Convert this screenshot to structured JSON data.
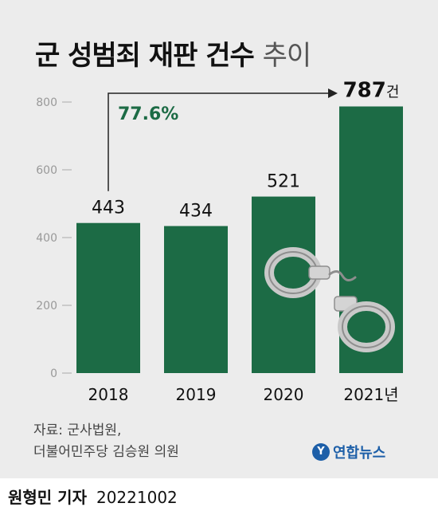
{
  "title": {
    "main": "군 성범죄 재판 건수",
    "suffix": "추이"
  },
  "source": {
    "line1": "자료: 군사법원,",
    "line2": "더불어민주당 김승원 의원"
  },
  "logo": {
    "text": "연합뉴스"
  },
  "byline": {
    "name": "원형민 기자",
    "date": "20221002"
  },
  "chart_data": {
    "type": "bar",
    "categories": [
      "2018",
      "2019",
      "2020",
      "2021년"
    ],
    "values": [
      443,
      434,
      521,
      787
    ],
    "value_labels": [
      "443",
      "434",
      "521",
      "787"
    ],
    "last_value_unit": "건",
    "ylim": [
      0,
      800
    ],
    "yticks": [
      0,
      200,
      400,
      600,
      800
    ],
    "ytick_labels": [
      "0",
      "200",
      "400",
      "600",
      "800"
    ],
    "annotation": "77.6%",
    "bar_color": "#1c6b45",
    "annotation_color": "#1c6b45"
  }
}
